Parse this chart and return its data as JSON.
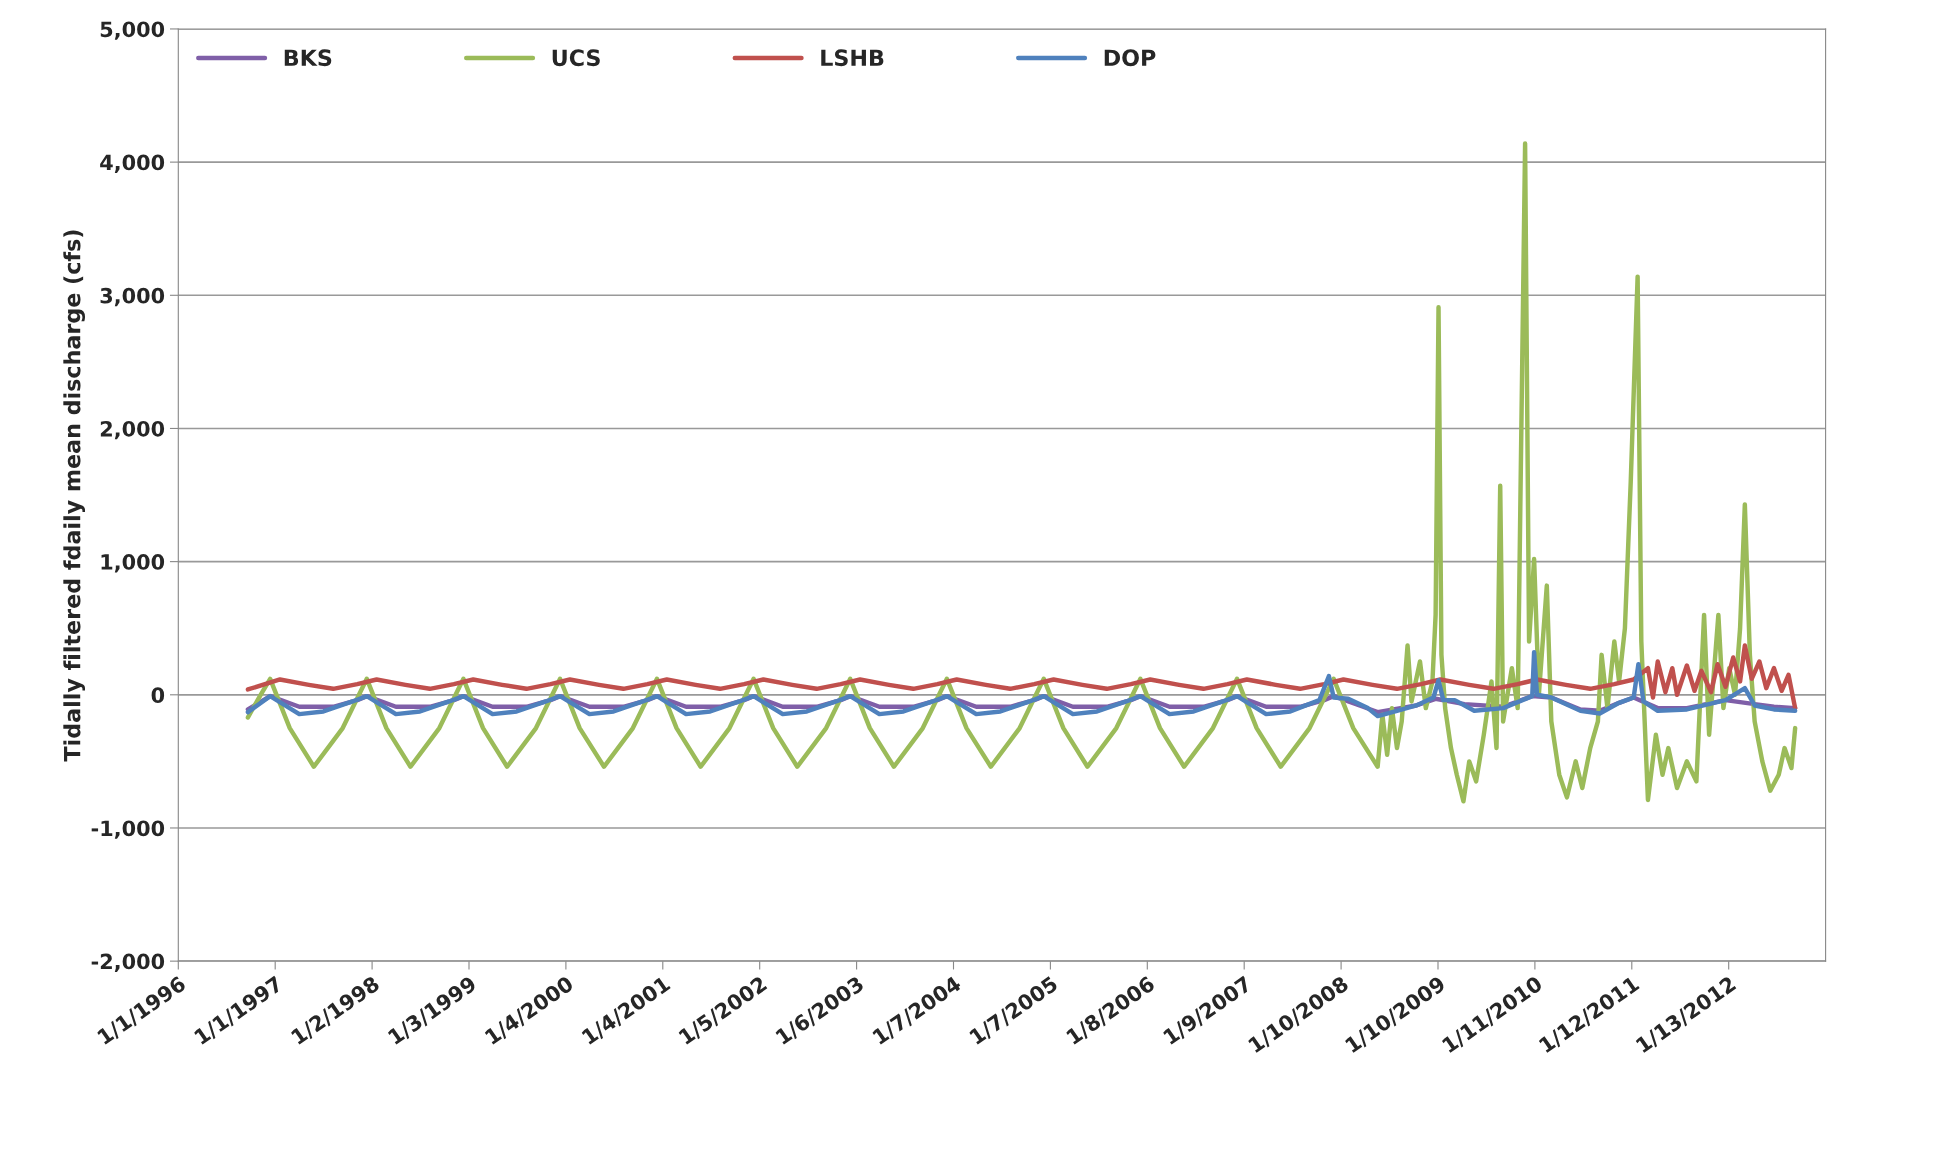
{
  "chart_data": {
    "type": "line",
    "ylabel": "Tidally filtered fdaily mean discharge (cfs)",
    "xlim": [
      "1996-01-01",
      "2013-01-13"
    ],
    "ylim": [
      -2000,
      5000
    ],
    "xticks": [
      {
        "value": "1996-01-01",
        "label": "1/1/1996"
      },
      {
        "value": "1997-01-01",
        "label": "1/1/1997"
      },
      {
        "value": "1998-01-02",
        "label": "1/2/1998"
      },
      {
        "value": "1999-01-03",
        "label": "1/3/1999"
      },
      {
        "value": "2000-01-04",
        "label": "1/4/2000"
      },
      {
        "value": "2001-01-04",
        "label": "1/4/2001"
      },
      {
        "value": "2002-01-05",
        "label": "1/5/2002"
      },
      {
        "value": "2003-01-06",
        "label": "1/6/2003"
      },
      {
        "value": "2004-01-07",
        "label": "1/7/2004"
      },
      {
        "value": "2005-01-07",
        "label": "1/7/2005"
      },
      {
        "value": "2006-01-08",
        "label": "1/8/2006"
      },
      {
        "value": "2007-01-09",
        "label": "1/9/2007"
      },
      {
        "value": "2008-01-10",
        "label": "1/10/2008"
      },
      {
        "value": "2009-01-10",
        "label": "1/10/2009"
      },
      {
        "value": "2010-01-11",
        "label": "1/11/2010"
      },
      {
        "value": "2011-01-12",
        "label": "1/12/2011"
      },
      {
        "value": "2012-01-13",
        "label": "1/13/2012"
      }
    ],
    "yticks": [
      {
        "value": -2000,
        "label": "-2,000"
      },
      {
        "value": -1000,
        "label": "-1,000"
      },
      0,
      {
        "value": 1000,
        "label": "1,000"
      },
      {
        "value": 2000,
        "label": "2,000"
      },
      {
        "value": 3000,
        "label": "3,000"
      },
      {
        "value": 4000,
        "label": "4,000"
      },
      {
        "value": 5000,
        "label": "5,000"
      }
    ],
    "grid": "y",
    "legend": "top left",
    "series": [
      {
        "name": "BKS",
        "color": "#7f5fa8",
        "x": [
          "1996-09-20",
          "1996-12-13",
          "1997-04-02",
          "1997-08-08",
          "1997-11-07",
          "1997-12-13",
          "1998-04-02",
          "1998-08-08",
          "1998-11-07",
          "1998-12-13",
          "1999-04-02",
          "1999-08-08",
          "1999-11-07",
          "1999-12-13",
          "2000-04-02",
          "2000-08-08",
          "2000-11-07",
          "2000-12-13",
          "2001-04-02",
          "2001-08-08",
          "2001-11-07",
          "2001-12-13",
          "2002-04-02",
          "2002-08-08",
          "2002-11-07",
          "2002-12-13",
          "2003-04-02",
          "2003-08-08",
          "2003-11-07",
          "2003-12-13",
          "2004-04-02",
          "2004-08-08",
          "2004-11-07",
          "2004-12-13",
          "2005-04-02",
          "2005-08-08",
          "2005-11-07",
          "2005-12-13",
          "2006-04-02",
          "2006-08-08",
          "2006-11-07",
          "2006-12-13",
          "2007-04-02",
          "2007-08-08",
          "2007-11-07",
          "2007-12-13",
          "2008-04-02",
          "2008-05-27",
          "2008-10-20",
          "2009-01-01",
          "2009-04-20",
          "2009-09-13",
          "2010-01-01",
          "2010-03-14",
          "2010-07-02",
          "2010-09-13",
          "2010-11-25",
          "2011-01-19",
          "2011-04-20",
          "2011-08-08",
          "2012-01-01",
          "2012-04-20",
          "2012-07-02",
          "2012-09-20"
        ],
        "values": [
          -110,
          -10,
          -90,
          -90,
          -40,
          -10,
          -90,
          -90,
          -40,
          -10,
          -90,
          -90,
          -40,
          -10,
          -90,
          -90,
          -40,
          -10,
          -90,
          -90,
          -40,
          -10,
          -90,
          -90,
          -40,
          -10,
          -90,
          -90,
          -40,
          -10,
          -90,
          -90,
          -40,
          -10,
          -90,
          -90,
          -40,
          -10,
          -90,
          -90,
          -40,
          -10,
          -90,
          -90,
          -40,
          -10,
          -90,
          -130,
          -80,
          -30,
          -70,
          -90,
          -10,
          -20,
          -110,
          -120,
          -60,
          -20,
          -100,
          -100,
          -40,
          -70,
          -90,
          -100
        ]
      },
      {
        "name": "UCS",
        "color": "#9bbb59",
        "x": [
          "1996-09-20",
          "1996-11-07",
          "1996-12-13",
          "1997-02-25",
          "1997-05-27",
          "1997-09-13",
          "1997-12-13",
          "1998-02-25",
          "1998-05-27",
          "1998-09-13",
          "1998-12-13",
          "1999-02-25",
          "1999-05-27",
          "1999-09-13",
          "1999-12-13",
          "2000-02-25",
          "2000-05-27",
          "2000-09-13",
          "2000-12-13",
          "2001-02-25",
          "2001-05-27",
          "2001-09-13",
          "2001-12-13",
          "2002-02-25",
          "2002-05-27",
          "2002-09-13",
          "2002-12-13",
          "2003-02-25",
          "2003-05-27",
          "2003-09-13",
          "2003-12-13",
          "2004-02-25",
          "2004-05-27",
          "2004-09-13",
          "2004-12-13",
          "2005-02-25",
          "2005-05-27",
          "2005-09-13",
          "2005-12-13",
          "2006-02-25",
          "2006-05-27",
          "2006-09-13",
          "2006-12-13",
          "2007-02-25",
          "2007-05-27",
          "2007-09-13",
          "2007-12-13",
          "2008-02-25",
          "2008-05-27",
          "2008-06-14",
          "2008-07-02",
          "2008-07-20",
          "2008-08-08",
          "2008-08-26",
          "2008-09-17",
          "2008-10-02",
          "2008-11-03",
          "2008-11-25",
          "2008-12-20",
          "2009-01-01",
          "2009-01-12",
          "2009-01-23",
          "2009-02-06",
          "2009-02-28",
          "2009-03-22",
          "2009-04-16",
          "2009-05-08",
          "2009-06-03",
          "2009-07-02",
          "2009-07-31",
          "2009-08-19",
          "2009-09-02",
          "2009-09-13",
          "2009-10-16",
          "2009-11-07",
          "2009-12-05",
          "2009-12-20",
          "2010-01-08",
          "2010-01-26",
          "2010-02-25",
          "2010-03-14",
          "2010-04-13",
          "2010-05-12",
          "2010-06-14",
          "2010-07-09",
          "2010-08-08",
          "2010-09-06",
          "2010-09-20",
          "2010-10-12",
          "2010-11-07",
          "2010-11-25",
          "2010-12-17",
          "2011-01-08",
          "2011-02-03",
          "2011-02-17",
          "2011-03-14",
          "2011-04-13",
          "2011-05-08",
          "2011-05-30",
          "2011-07-02",
          "2011-08-08",
          "2011-09-13",
          "2011-10-12",
          "2011-10-31",
          "2011-12-05",
          "2011-12-24",
          "2012-01-15",
          "2012-02-06",
          "2012-02-25",
          "2012-03-14",
          "2012-04-02",
          "2012-04-20",
          "2012-05-19",
          "2012-06-18",
          "2012-07-20",
          "2012-08-11",
          "2012-09-06",
          "2012-09-20"
        ],
        "values": [
          -170,
          0,
          120,
          -250,
          -540,
          -250,
          120,
          -250,
          -540,
          -250,
          120,
          -250,
          -540,
          -250,
          120,
          -250,
          -540,
          -250,
          120,
          -250,
          -540,
          -250,
          120,
          -250,
          -540,
          -250,
          120,
          -250,
          -540,
          -250,
          120,
          -250,
          -540,
          -250,
          120,
          -250,
          -540,
          -250,
          120,
          -250,
          -540,
          -250,
          120,
          -250,
          -540,
          -250,
          120,
          -250,
          -540,
          -150,
          -450,
          -100,
          -400,
          -200,
          370,
          -50,
          250,
          -100,
          100,
          600,
          2910,
          300,
          -100,
          -400,
          -600,
          -800,
          -500,
          -650,
          -300,
          100,
          -400,
          1570,
          -200,
          200,
          -100,
          4140,
          400,
          1020,
          0,
          820,
          -200,
          -600,
          -770,
          -500,
          -700,
          -400,
          -200,
          300,
          -100,
          400,
          100,
          500,
          1600,
          3140,
          400,
          -790,
          -300,
          -600,
          -400,
          -700,
          -500,
          -650,
          600,
          -300,
          600,
          -100,
          200,
          0,
          500,
          1430,
          300,
          -200,
          -500,
          -720,
          -600,
          -400,
          -550,
          -250
        ]
      },
      {
        "name": "LSHB",
        "color": "#c0504d",
        "x": [
          "1996-09-20",
          "1997-01-19",
          "1997-05-08",
          "1997-08-08",
          "1997-11-07",
          "1998-01-19",
          "1998-05-08",
          "1998-08-08",
          "1998-11-07",
          "1999-01-19",
          "1999-05-08",
          "1999-08-08",
          "1999-11-07",
          "2000-01-19",
          "2000-05-08",
          "2000-08-08",
          "2000-11-07",
          "2001-01-19",
          "2001-05-08",
          "2001-08-08",
          "2001-11-07",
          "2002-01-19",
          "2002-05-08",
          "2002-08-08",
          "2002-11-07",
          "2003-01-19",
          "2003-05-08",
          "2003-08-08",
          "2003-11-07",
          "2004-01-19",
          "2004-05-08",
          "2004-08-08",
          "2004-11-07",
          "2005-01-19",
          "2005-05-08",
          "2005-08-08",
          "2005-11-07",
          "2006-01-19",
          "2006-05-08",
          "2006-08-08",
          "2006-11-07",
          "2007-01-19",
          "2007-05-08",
          "2007-08-08",
          "2007-11-07",
          "2008-01-19",
          "2008-05-08",
          "2008-08-08",
          "2008-11-07",
          "2009-01-19",
          "2009-05-08",
          "2009-08-08",
          "2009-11-07",
          "2010-01-19",
          "2010-05-08",
          "2010-08-08",
          "2010-11-07",
          "2011-01-19",
          "2011-03-14",
          "2011-04-02",
          "2011-04-20",
          "2011-05-19",
          "2011-06-14",
          "2011-07-02",
          "2011-08-08",
          "2011-09-06",
          "2011-10-02",
          "2011-11-07",
          "2011-12-02",
          "2012-01-01",
          "2012-01-30",
          "2012-02-25",
          "2012-03-14",
          "2012-04-09",
          "2012-05-08",
          "2012-06-03",
          "2012-07-02",
          "2012-07-31",
          "2012-08-26",
          "2012-09-20"
        ],
        "values": [
          40,
          115,
          75,
          45,
          80,
          115,
          75,
          45,
          80,
          115,
          75,
          45,
          80,
          115,
          75,
          45,
          80,
          115,
          75,
          45,
          80,
          115,
          75,
          45,
          80,
          115,
          75,
          45,
          80,
          115,
          75,
          45,
          80,
          115,
          75,
          45,
          80,
          115,
          75,
          45,
          80,
          115,
          75,
          45,
          80,
          115,
          75,
          45,
          80,
          115,
          75,
          45,
          80,
          115,
          75,
          45,
          80,
          115,
          200,
          -20,
          250,
          20,
          200,
          0,
          220,
          30,
          180,
          20,
          230,
          60,
          280,
          100,
          370,
          120,
          250,
          50,
          200,
          30,
          150,
          -100
        ]
      },
      {
        "name": "DOP",
        "color": "#4f81bd",
        "x": [
          "1996-09-20",
          "1996-12-13",
          "1997-04-02",
          "1997-07-02",
          "1997-10-20",
          "1997-12-13",
          "1998-04-02",
          "1998-07-02",
          "1998-10-20",
          "1998-12-13",
          "1999-04-02",
          "1999-07-02",
          "1999-10-20",
          "1999-12-13",
          "2000-04-02",
          "2000-07-02",
          "2000-10-20",
          "2000-12-13",
          "2001-04-02",
          "2001-07-02",
          "2001-10-20",
          "2001-12-13",
          "2002-04-02",
          "2002-07-02",
          "2002-10-20",
          "2002-12-13",
          "2003-04-02",
          "2003-07-02",
          "2003-10-20",
          "2003-12-13",
          "2004-04-02",
          "2004-07-02",
          "2004-10-20",
          "2004-12-13",
          "2005-04-02",
          "2005-07-02",
          "2005-10-20",
          "2005-12-13",
          "2006-04-02",
          "2006-07-02",
          "2006-10-20",
          "2006-12-13",
          "2007-04-02",
          "2007-07-02",
          "2007-10-20",
          "2007-11-25",
          "2007-12-13",
          "2008-02-06",
          "2008-04-20",
          "2008-05-27",
          "2008-08-08",
          "2008-10-20",
          "2008-12-24",
          "2009-01-12",
          "2009-01-30",
          "2009-03-14",
          "2009-05-27",
          "2009-09-13",
          "2009-11-25",
          "2010-01-01",
          "2010-01-08",
          "2010-01-19",
          "2010-03-14",
          "2010-07-02",
          "2010-09-13",
          "2010-11-25",
          "2011-01-19",
          "2011-02-06",
          "2011-02-25",
          "2011-04-20",
          "2011-08-08",
          "2012-01-01",
          "2012-03-14",
          "2012-04-20",
          "2012-07-02",
          "2012-09-20"
        ],
        "values": [
          -130,
          -10,
          -145,
          -125,
          -50,
          -10,
          -145,
          -125,
          -50,
          -10,
          -145,
          -125,
          -50,
          -10,
          -145,
          -125,
          -50,
          -10,
          -145,
          -125,
          -50,
          -10,
          -145,
          -125,
          -50,
          -10,
          -145,
          -125,
          -50,
          -10,
          -145,
          -125,
          -50,
          -10,
          -145,
          -125,
          -50,
          -10,
          -145,
          -125,
          -50,
          -10,
          -145,
          -125,
          -40,
          140,
          -20,
          -30,
          -100,
          -160,
          -120,
          -80,
          -20,
          110,
          -40,
          -40,
          -120,
          -100,
          -40,
          -10,
          320,
          0,
          -20,
          -120,
          -140,
          -60,
          -20,
          230,
          -50,
          -120,
          -110,
          -40,
          50,
          -80,
          -110,
          -120
        ]
      }
    ]
  }
}
